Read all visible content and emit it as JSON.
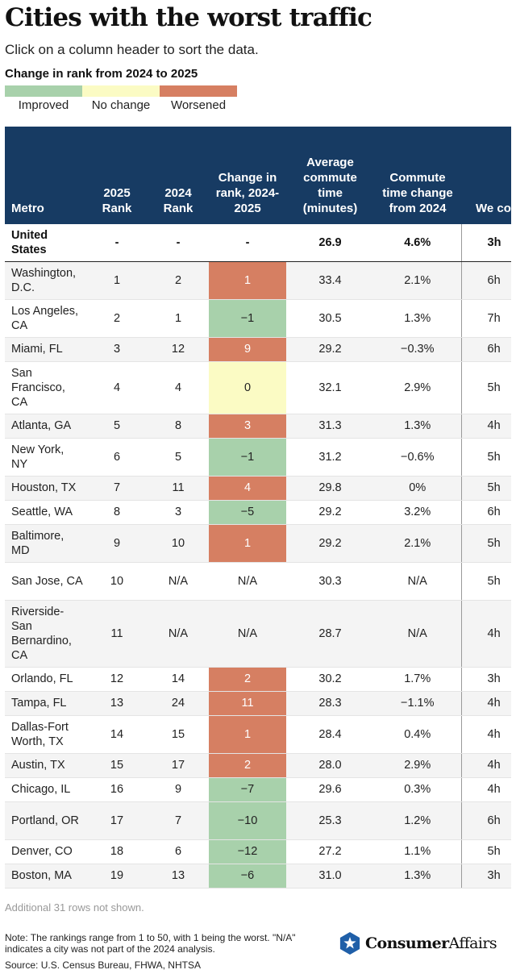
{
  "title": "Cities with the worst traffic",
  "subtitle": "Click on a column header to sort the data.",
  "legend": {
    "title": "Change in rank from 2024 to 2025",
    "items": [
      {
        "label": "Improved",
        "color": "#a8d1ab"
      },
      {
        "label": "No change",
        "color": "#fbfbc4"
      },
      {
        "label": "Worsened",
        "color": "#d67f62"
      }
    ]
  },
  "colors": {
    "header_bg": "#173b63",
    "improved": "#a8d1ab",
    "no_change": "#fbfbc4",
    "worsened": "#d67f62"
  },
  "chart_data": {
    "type": "table",
    "columns": [
      "Metro",
      "2025 Rank",
      "2024 Rank",
      "Change in rank, 2024-2025",
      "Average commute time (minutes)",
      "Commute time change from 2024",
      "We cong t"
    ],
    "us_row": {
      "metro": "United States",
      "rank2025": "-",
      "rank2024": "-",
      "change": "-",
      "avg": "26.9",
      "ctc": "4.6%",
      "wkd": "3h"
    },
    "rows": [
      {
        "metro": "Washington, D.C.",
        "rank2025": "1",
        "rank2024": "2",
        "change": "1",
        "status": "worsened",
        "avg": "33.4",
        "ctc": "2.1%",
        "wkd": "6h"
      },
      {
        "metro": "Los Angeles, CA",
        "rank2025": "2",
        "rank2024": "1",
        "change": "−1",
        "status": "improved",
        "avg": "30.5",
        "ctc": "1.3%",
        "wkd": "7h"
      },
      {
        "metro": "Miami, FL",
        "rank2025": "3",
        "rank2024": "12",
        "change": "9",
        "status": "worsened",
        "avg": "29.2",
        "ctc": "−0.3%",
        "wkd": "6h"
      },
      {
        "metro": "San Francisco, CA",
        "rank2025": "4",
        "rank2024": "4",
        "change": "0",
        "status": "nochange",
        "avg": "32.1",
        "ctc": "2.9%",
        "wkd": "5h"
      },
      {
        "metro": "Atlanta, GA",
        "rank2025": "5",
        "rank2024": "8",
        "change": "3",
        "status": "worsened",
        "avg": "31.3",
        "ctc": "1.3%",
        "wkd": "4h"
      },
      {
        "metro": "New York, NY",
        "rank2025": "6",
        "rank2024": "5",
        "change": "−1",
        "status": "improved",
        "avg": "31.2",
        "ctc": "−0.6%",
        "wkd": "5h"
      },
      {
        "metro": "Houston, TX",
        "rank2025": "7",
        "rank2024": "11",
        "change": "4",
        "status": "worsened",
        "avg": "29.8",
        "ctc": "0%",
        "wkd": "5h"
      },
      {
        "metro": "Seattle, WA",
        "rank2025": "8",
        "rank2024": "3",
        "change": "−5",
        "status": "improved",
        "avg": "29.2",
        "ctc": "3.2%",
        "wkd": "6h"
      },
      {
        "metro": "Baltimore, MD",
        "rank2025": "9",
        "rank2024": "10",
        "change": "1",
        "status": "worsened",
        "avg": "29.2",
        "ctc": "2.1%",
        "wkd": "5h"
      },
      {
        "metro": "San Jose, CA",
        "rank2025": "10",
        "rank2024": "N/A",
        "change": "N/A",
        "status": "",
        "avg": "30.3",
        "ctc": "N/A",
        "wkd": "5h"
      },
      {
        "metro": "Riverside-San Bernardino, CA",
        "rank2025": "11",
        "rank2024": "N/A",
        "change": "N/A",
        "status": "",
        "avg": "28.7",
        "ctc": "N/A",
        "wkd": "4h"
      },
      {
        "metro": "Orlando, FL",
        "rank2025": "12",
        "rank2024": "14",
        "change": "2",
        "status": "worsened",
        "avg": "30.2",
        "ctc": "1.7%",
        "wkd": "3h"
      },
      {
        "metro": "Tampa, FL",
        "rank2025": "13",
        "rank2024": "24",
        "change": "11",
        "status": "worsened",
        "avg": "28.3",
        "ctc": "−1.1%",
        "wkd": "4h"
      },
      {
        "metro": "Dallas-Fort Worth, TX",
        "rank2025": "14",
        "rank2024": "15",
        "change": "1",
        "status": "worsened",
        "avg": "28.4",
        "ctc": "0.4%",
        "wkd": "4h"
      },
      {
        "metro": "Austin, TX",
        "rank2025": "15",
        "rank2024": "17",
        "change": "2",
        "status": "worsened",
        "avg": "28.0",
        "ctc": "2.9%",
        "wkd": "4h"
      },
      {
        "metro": "Chicago, IL",
        "rank2025": "16",
        "rank2024": "9",
        "change": "−7",
        "status": "improved",
        "avg": "29.6",
        "ctc": "0.3%",
        "wkd": "4h"
      },
      {
        "metro": "Portland, OR",
        "rank2025": "17",
        "rank2024": "7",
        "change": "−10",
        "status": "improved",
        "avg": "25.3",
        "ctc": "1.2%",
        "wkd": "6h"
      },
      {
        "metro": "Denver, CO",
        "rank2025": "18",
        "rank2024": "6",
        "change": "−12",
        "status": "improved",
        "avg": "27.2",
        "ctc": "1.1%",
        "wkd": "5h"
      },
      {
        "metro": "Boston, MA",
        "rank2025": "19",
        "rank2024": "13",
        "change": "−6",
        "status": "improved",
        "avg": "31.0",
        "ctc": "1.3%",
        "wkd": "3h"
      }
    ]
  },
  "footer": {
    "more_rows": "Additional 31 rows not shown.",
    "note": "Note: The rankings range from 1 to 50, with 1 being the worst. \"N/A\" indicates a city was not part of the 2024 analysis.",
    "source": "Source: U.S. Census Bureau, FHWA, NHTSA"
  },
  "brand": {
    "name_bold": "Consumer",
    "name_regular": "Affairs",
    "icon": "star-shield-icon"
  }
}
